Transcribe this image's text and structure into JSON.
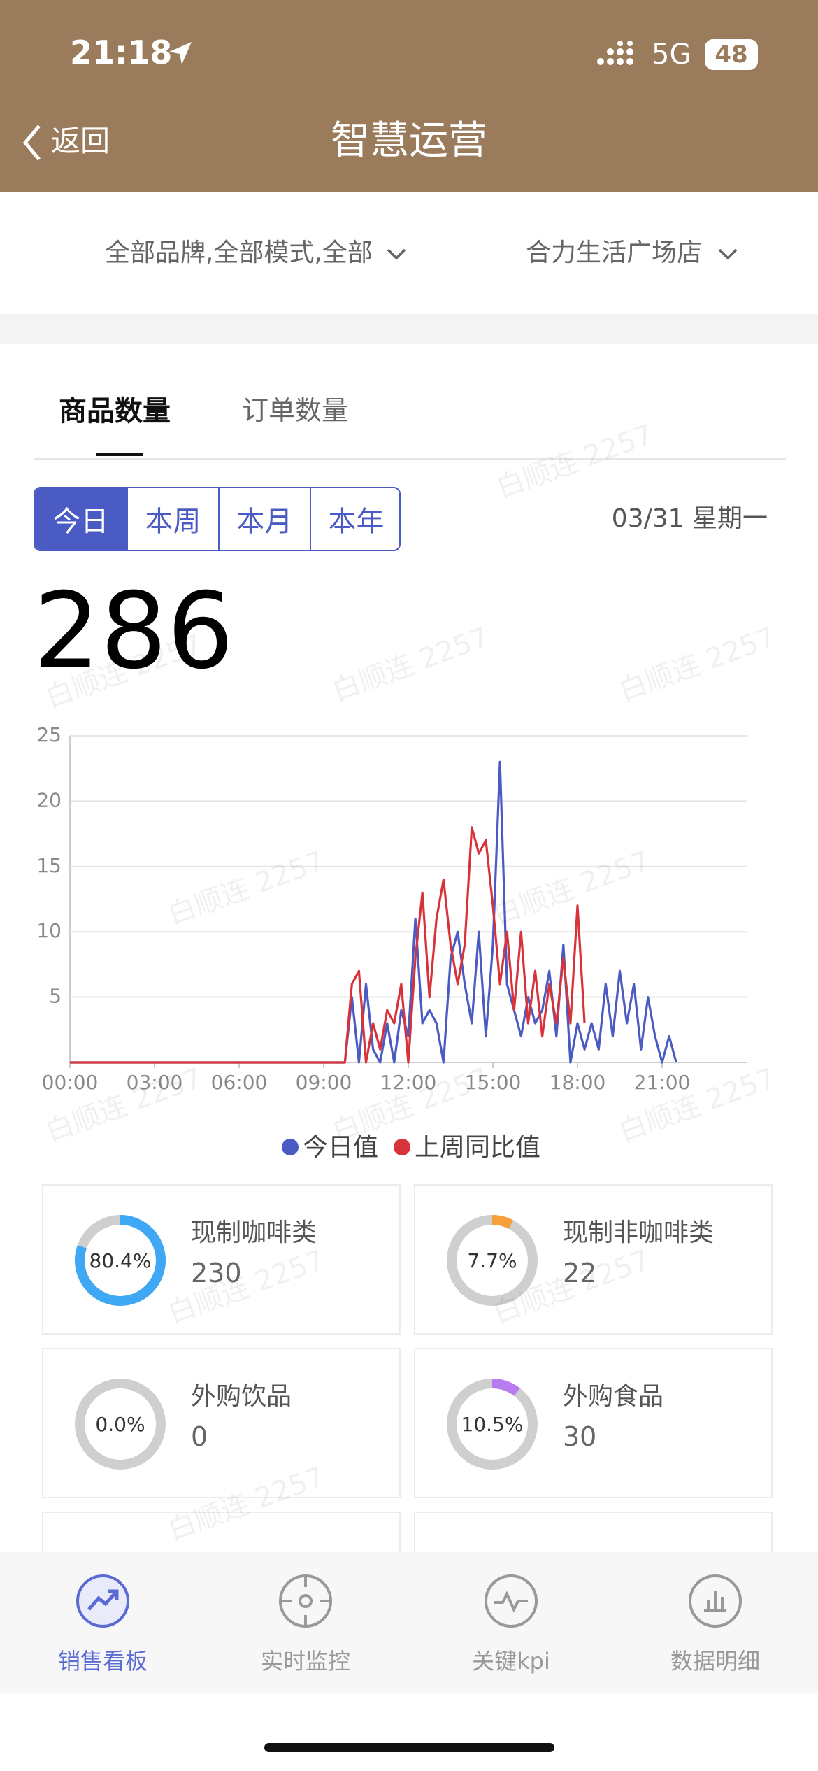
{
  "status_bar": {
    "time": "21:18",
    "network": "5G",
    "battery": "48"
  },
  "nav": {
    "back": "返回",
    "title": "智慧运营"
  },
  "filters": [
    "全部品牌,全部模式,全部",
    "合力生活广场店"
  ],
  "tabs": [
    "商品数量",
    "订单数量"
  ],
  "periods": [
    "今日",
    "本周",
    "本月",
    "本年"
  ],
  "date": "03/31 星期一",
  "total": 286,
  "watermark": "白顺连 2257",
  "chart_data": {
    "type": "line",
    "x": [
      0,
      9.75,
      10,
      10.25,
      10.5,
      10.75,
      11,
      11.25,
      11.5,
      11.75,
      12,
      12.25,
      12.5,
      12.75,
      13,
      13.25,
      13.5,
      13.75,
      14,
      14.25,
      14.5,
      14.75,
      15,
      15.25,
      15.5,
      15.75,
      16,
      16.25,
      16.5,
      16.75,
      17,
      17.25,
      17.5,
      17.75,
      18,
      18.25,
      18.5,
      18.75,
      19,
      19.25,
      19.5,
      19.75,
      20,
      20.25,
      20.5,
      20.75,
      21,
      21.25,
      21.5
    ],
    "series": [
      {
        "name": "今日值",
        "color": "#4a5bc4",
        "values": [
          0,
          0,
          5,
          0,
          6,
          1,
          0,
          3,
          0,
          4,
          2,
          11,
          3,
          4,
          3,
          0,
          8,
          10,
          6,
          3,
          10,
          2,
          9,
          23,
          6,
          4,
          2,
          5,
          3,
          4,
          7,
          2,
          9,
          0,
          3,
          1,
          3,
          1,
          6,
          2,
          7,
          3,
          6,
          1,
          5,
          2,
          0,
          2,
          0
        ]
      },
      {
        "name": "上周同比值",
        "color": "#d8333a",
        "values": [
          0,
          0,
          6,
          7,
          0,
          3,
          1,
          4,
          3,
          6,
          0,
          8,
          13,
          5,
          11,
          14,
          9,
          6,
          9,
          18,
          16,
          17,
          12,
          6,
          10,
          4,
          10,
          3,
          7,
          2,
          6,
          3,
          8,
          3,
          12,
          3,
          null,
          null,
          null,
          null,
          null,
          null,
          null,
          null,
          null,
          null,
          null,
          null,
          null
        ]
      }
    ],
    "xlim": [
      0,
      24
    ],
    "xticks": [
      {
        "value": 0,
        "label": "00:00"
      },
      {
        "value": 3,
        "label": "03:00"
      },
      {
        "value": 6,
        "label": "06:00"
      },
      {
        "value": 9,
        "label": "09:00"
      },
      {
        "value": 12,
        "label": "12:00"
      },
      {
        "value": 15,
        "label": "15:00"
      },
      {
        "value": 18,
        "label": "18:00"
      },
      {
        "value": 21,
        "label": "21:00"
      }
    ],
    "ylim": [
      0,
      25
    ],
    "yticks": [
      5,
      10,
      15,
      20,
      25
    ],
    "grid": true
  },
  "cards": [
    {
      "name": "现制咖啡类",
      "value": 230,
      "percent": 80.4,
      "percent_label": "80.4%",
      "color": "#3ea8f5"
    },
    {
      "name": "现制非咖啡类",
      "value": 22,
      "percent": 7.7,
      "percent_label": "7.7%",
      "color": "#f5a03a"
    },
    {
      "name": "外购饮品",
      "value": 0,
      "percent": 0,
      "percent_label": "0.0%",
      "color": "#3ea8f5"
    },
    {
      "name": "外购食品",
      "value": 30,
      "percent": 10.5,
      "percent_label": "10.5%",
      "color": "#b67cf0"
    }
  ],
  "bottom_nav": [
    "销售看板",
    "实时监控",
    "关键kpi",
    "数据明细"
  ]
}
